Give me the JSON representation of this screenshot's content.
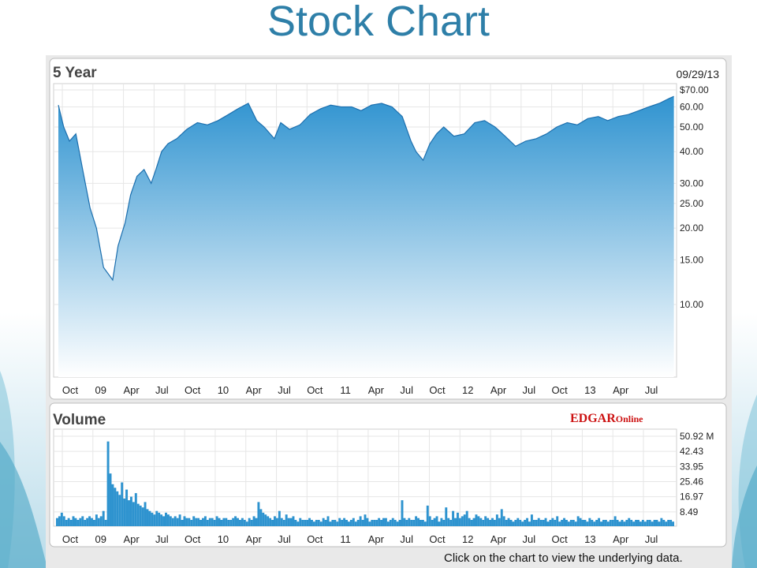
{
  "page": {
    "title": "Stock Chart",
    "footer": "Click on the chart to view the underlying data."
  },
  "colors": {
    "title": "#2e7fa8",
    "area_top": "#2f93d0",
    "area_bottom": "#ffffff",
    "line": "#1c6fae",
    "volume_bar": "#2e93cf",
    "edgar_red": "#cc1111"
  },
  "chart_data": [
    {
      "type": "area",
      "title": "5 Year",
      "date": "09/29/13",
      "scale": "log",
      "x_tick_labels": [
        "Oct",
        "09",
        "Apr",
        "Jul",
        "Oct",
        "10",
        "Apr",
        "Jul",
        "Oct",
        "11",
        "Apr",
        "Jul",
        "Oct",
        "12",
        "Apr",
        "Jul",
        "Oct",
        "13",
        "Apr",
        "Jul"
      ],
      "y_tick_labels": [
        {
          "value": 70,
          "label": "$70.00"
        },
        {
          "value": 60,
          "label": "60.00"
        },
        {
          "value": 50,
          "label": "50.00"
        },
        {
          "value": 40,
          "label": "40.00"
        },
        {
          "value": 30,
          "label": "30.00"
        },
        {
          "value": 25,
          "label": "25.00"
        },
        {
          "value": 20,
          "label": "20.00"
        },
        {
          "value": 15,
          "label": "15.00"
        },
        {
          "value": 10,
          "label": "10.00"
        }
      ],
      "x": [
        "2008-09-29",
        "2008-10-15",
        "2008-11-01",
        "2008-11-20",
        "2008-12-10",
        "2009-01-01",
        "2009-01-20",
        "2009-02-10",
        "2009-03-09",
        "2009-03-25",
        "2009-04-15",
        "2009-05-01",
        "2009-05-20",
        "2009-06-10",
        "2009-07-01",
        "2009-07-15",
        "2009-08-01",
        "2009-08-20",
        "2009-09-15",
        "2009-10-15",
        "2009-11-15",
        "2009-12-15",
        "2010-01-15",
        "2010-02-15",
        "2010-03-15",
        "2010-04-15",
        "2010-05-10",
        "2010-06-01",
        "2010-07-01",
        "2010-07-20",
        "2010-08-15",
        "2010-09-15",
        "2010-10-15",
        "2010-11-15",
        "2010-12-15",
        "2011-01-15",
        "2011-02-15",
        "2011-03-15",
        "2011-04-15",
        "2011-05-15",
        "2011-06-15",
        "2011-07-15",
        "2011-08-10",
        "2011-08-25",
        "2011-09-15",
        "2011-10-05",
        "2011-10-25",
        "2011-11-15",
        "2011-12-15",
        "2012-01-15",
        "2012-02-15",
        "2012-03-15",
        "2012-04-15",
        "2012-05-15",
        "2012-06-15",
        "2012-07-15",
        "2012-08-15",
        "2012-09-15",
        "2012-10-15",
        "2012-11-15",
        "2012-12-15",
        "2013-01-15",
        "2013-02-15",
        "2013-03-15",
        "2013-04-15",
        "2013-05-15",
        "2013-06-15",
        "2013-07-15",
        "2013-08-15",
        "2013-09-15",
        "2013-09-27"
      ],
      "values": [
        61,
        50,
        44,
        47,
        34,
        24,
        20,
        14,
        12.5,
        17,
        21,
        27,
        32,
        34,
        30,
        34,
        40,
        43,
        45,
        49,
        52,
        51,
        53,
        56,
        59,
        62,
        53,
        50,
        45,
        52,
        49,
        51,
        56,
        59,
        61,
        60,
        60,
        58,
        61,
        62,
        60,
        55,
        44,
        40,
        37,
        43,
        47,
        50,
        46,
        47,
        52,
        53,
        50,
        46,
        42,
        44,
        45,
        47,
        50,
        52,
        51,
        54,
        55,
        53,
        55,
        56,
        58,
        60,
        62,
        65,
        66
      ]
    },
    {
      "type": "bar",
      "title": "Volume",
      "brand": {
        "part1": "EDGAR",
        "part2": "Online"
      },
      "unit": "M",
      "ylim": [
        0,
        50.92
      ],
      "y_tick_labels": [
        {
          "value": 50.92,
          "label": "50.92 M"
        },
        {
          "value": 42.43,
          "label": "42.43"
        },
        {
          "value": 33.95,
          "label": "33.95"
        },
        {
          "value": 25.46,
          "label": "25.46"
        },
        {
          "value": 16.97,
          "label": "16.97"
        },
        {
          "value": 8.49,
          "label": "8.49"
        }
      ],
      "x_tick_labels": [
        "Oct",
        "09",
        "Apr",
        "Jul",
        "Oct",
        "10",
        "Apr",
        "Jul",
        "Oct",
        "11",
        "Apr",
        "Jul",
        "Oct",
        "12",
        "Apr",
        "Jul",
        "Oct",
        "13",
        "Apr",
        "Jul"
      ],
      "values_weekly": [
        5,
        6,
        8,
        6,
        4,
        5,
        4,
        6,
        5,
        4,
        5,
        6,
        4,
        5,
        6,
        5,
        4,
        7,
        5,
        6,
        9,
        4,
        48,
        30,
        24,
        22,
        20,
        18,
        25,
        16,
        21,
        15,
        17,
        14,
        19,
        13,
        12,
        11,
        14,
        10,
        9,
        8,
        7,
        9,
        8,
        7,
        6,
        8,
        7,
        6,
        5,
        6,
        5,
        7,
        4,
        6,
        5,
        5,
        4,
        6,
        5,
        5,
        4,
        5,
        6,
        4,
        5,
        5,
        4,
        6,
        5,
        4,
        5,
        5,
        4,
        4,
        5,
        6,
        5,
        4,
        5,
        4,
        3,
        5,
        4,
        6,
        5,
        14,
        10,
        8,
        7,
        6,
        5,
        4,
        6,
        5,
        9,
        5,
        4,
        7,
        5,
        5,
        6,
        4,
        3,
        5,
        4,
        4,
        4,
        5,
        4,
        3,
        4,
        4,
        3,
        5,
        4,
        6,
        3,
        4,
        4,
        3,
        5,
        4,
        5,
        4,
        3,
        4,
        5,
        3,
        4,
        6,
        4,
        7,
        5,
        3,
        4,
        4,
        4,
        5,
        4,
        5,
        5,
        3,
        4,
        5,
        4,
        3,
        4,
        15,
        5,
        4,
        5,
        4,
        4,
        6,
        5,
        4,
        4,
        3,
        12,
        6,
        4,
        5,
        6,
        3,
        5,
        4,
        11,
        5,
        4,
        9,
        5,
        8,
        5,
        6,
        7,
        9,
        5,
        4,
        5,
        7,
        6,
        5,
        4,
        6,
        5,
        4,
        5,
        4,
        7,
        5,
        10,
        6,
        4,
        5,
        4,
        3,
        4,
        5,
        4,
        3,
        4,
        5,
        3,
        7,
        4,
        4,
        5,
        4,
        4,
        5,
        3,
        4,
        5,
        4,
        6,
        3,
        4,
        5,
        4,
        3,
        4,
        4,
        3,
        6,
        5,
        4,
        4,
        3,
        5,
        4,
        3,
        4,
        5,
        3,
        4,
        4,
        3,
        4,
        4,
        6,
        4,
        3,
        4,
        3,
        4,
        5,
        4,
        3,
        4,
        4,
        3,
        4,
        3,
        4,
        4,
        3,
        4,
        4,
        3,
        5,
        4,
        3,
        4,
        4,
        3
      ]
    }
  ]
}
